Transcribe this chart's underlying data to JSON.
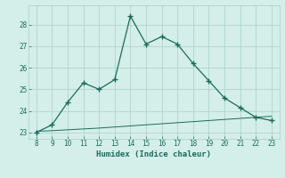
{
  "x": [
    8,
    9,
    10,
    11,
    12,
    13,
    14,
    15,
    16,
    17,
    18,
    19,
    20,
    21,
    22,
    23
  ],
  "y_main": [
    23.0,
    23.35,
    24.4,
    25.3,
    25.0,
    25.45,
    28.4,
    27.1,
    27.45,
    27.1,
    26.2,
    25.4,
    24.6,
    24.15,
    23.7,
    23.55
  ],
  "y_ref": [
    23.05,
    23.08,
    23.12,
    23.16,
    23.2,
    23.25,
    23.3,
    23.35,
    23.4,
    23.45,
    23.5,
    23.55,
    23.6,
    23.65,
    23.7,
    23.75
  ],
  "xlabel": "Humidex (Indice chaleur)",
  "xlim": [
    7.5,
    23.5
  ],
  "ylim": [
    22.7,
    28.9
  ],
  "yticks": [
    23,
    24,
    25,
    26,
    27,
    28
  ],
  "xticks": [
    8,
    9,
    10,
    11,
    12,
    13,
    14,
    15,
    16,
    17,
    18,
    19,
    20,
    21,
    22,
    23
  ],
  "line_color": "#1a6b5a",
  "bg_color": "#d4eeea",
  "grid_color": "#aed4ce",
  "text_color": "#1a6b5a"
}
